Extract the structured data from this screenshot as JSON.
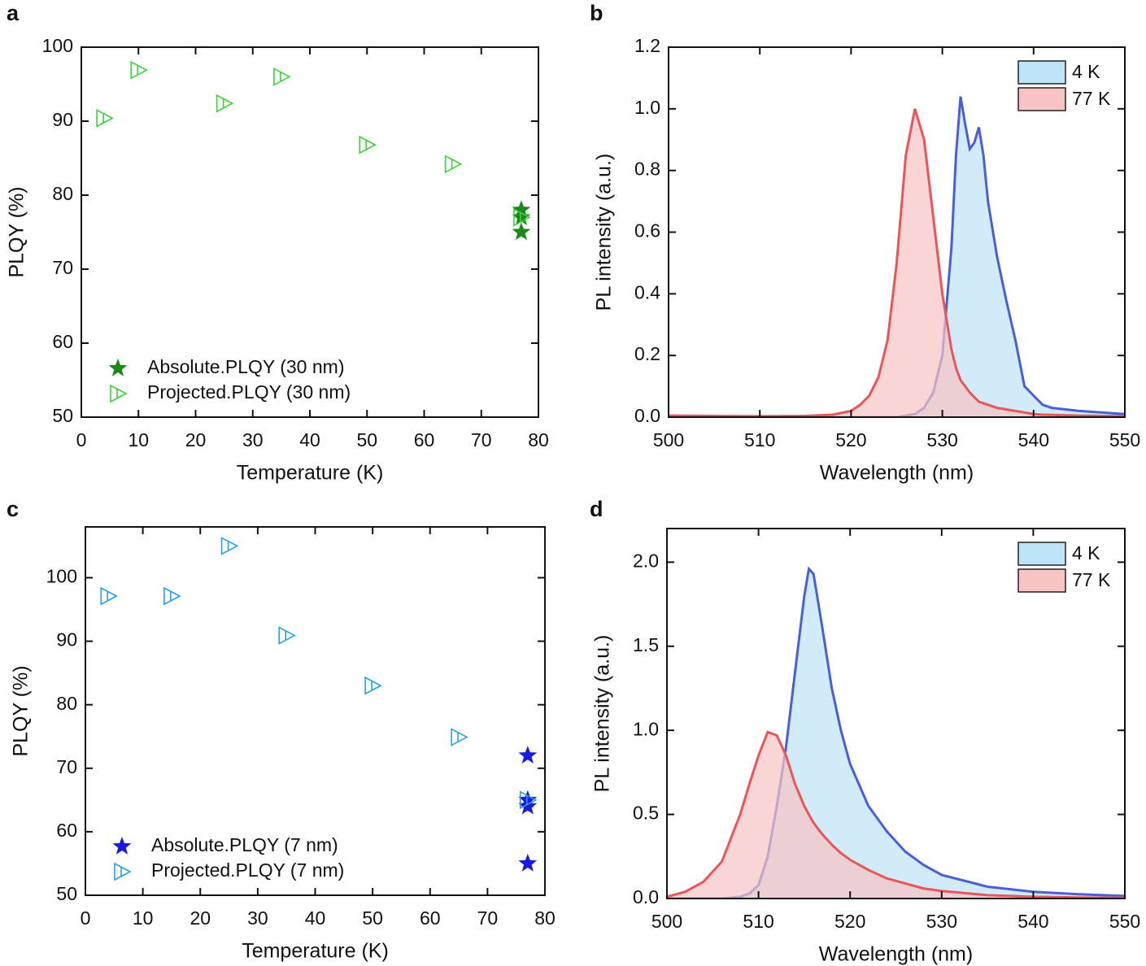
{
  "chart_data": [
    {
      "type": "scatter",
      "label": "a",
      "x_label": "Temperature (K)",
      "y_label": "PLQY (%)",
      "xlim": [
        0,
        80
      ],
      "xticks": [
        0,
        10,
        20,
        30,
        40,
        50,
        60,
        70,
        80
      ],
      "ylim": [
        50,
        100
      ],
      "yticks": [
        50,
        60,
        70,
        80,
        90,
        100
      ],
      "legend": "lower left",
      "series": [
        {
          "name": "Absolute.PLQY (30 nm)",
          "marker": "star",
          "color": "#1a8a1a",
          "x": [
            77,
            77,
            77
          ],
          "values": [
            78,
            77,
            75
          ]
        },
        {
          "name": "Projected.PLQY (30 nm)",
          "marker": "triangle-bar",
          "color": "#3ecf3e",
          "x": [
            4,
            10,
            25,
            35,
            50,
            65,
            77
          ],
          "values": [
            90.4,
            96.9,
            92.4,
            96,
            86.8,
            84.2,
            77
          ]
        }
      ]
    },
    {
      "type": "area",
      "label": "b",
      "x_label": "Wavelength (nm)",
      "y_label": "PL intensity (a.u.)",
      "xlim": [
        500,
        550
      ],
      "xticks": [
        500,
        510,
        520,
        530,
        540,
        550
      ],
      "ylim": [
        0,
        1.2
      ],
      "yticks": [
        {
          "value": 0,
          "label": "0.0"
        },
        0.2,
        0.4,
        0.6,
        0.8,
        {
          "value": 1,
          "label": "1.0"
        },
        1.2
      ],
      "legend": "upper right",
      "x": [
        500,
        505,
        510,
        515,
        518,
        520,
        521,
        522,
        523,
        524,
        525,
        526,
        527,
        528,
        529,
        530,
        531,
        531.5,
        532,
        532.5,
        533,
        533.5,
        534,
        534.5,
        535,
        536,
        537,
        538,
        539,
        540,
        541,
        542,
        545,
        550
      ],
      "series": [
        {
          "name": "4 K",
          "color": "#4a5fd6",
          "fill": "#bfe3f7",
          "values": [
            0,
            0,
            0,
            0,
            0,
            0,
            0,
            0,
            0,
            0,
            0,
            0.005,
            0.01,
            0.03,
            0.08,
            0.2,
            0.55,
            0.85,
            1.04,
            0.95,
            0.87,
            0.89,
            0.94,
            0.85,
            0.7,
            0.52,
            0.38,
            0.25,
            0.1,
            0.07,
            0.04,
            0.03,
            0.02,
            0.01
          ]
        },
        {
          "name": "77 K",
          "color": "#e8565a",
          "fill": "#f7c3c3",
          "values": [
            0.005,
            0.004,
            0.003,
            0.004,
            0.008,
            0.02,
            0.04,
            0.07,
            0.13,
            0.25,
            0.5,
            0.85,
            1.0,
            0.9,
            0.65,
            0.4,
            0.22,
            0.16,
            0.12,
            0.1,
            0.08,
            0.065,
            0.05,
            0.045,
            0.04,
            0.03,
            0.025,
            0.02,
            0.015,
            0.01,
            0.008,
            0.007,
            0.005,
            0.003
          ]
        }
      ]
    },
    {
      "type": "scatter",
      "label": "c",
      "x_label": "Temperature (K)",
      "y_label": "PLQY (%)",
      "xlim": [
        0,
        80
      ],
      "xticks": [
        0,
        10,
        20,
        30,
        40,
        50,
        60,
        70,
        80
      ],
      "ylim": [
        50,
        108
      ],
      "yticks": [
        50,
        60,
        70,
        80,
        90,
        100
      ],
      "legend": "lower left",
      "series": [
        {
          "name": "Absolute.PLQY (7 nm)",
          "marker": "star",
          "color": "#1a1adf",
          "x": [
            77,
            77,
            77,
            77
          ],
          "values": [
            72,
            65,
            64,
            55
          ]
        },
        {
          "name": "Projected.PLQY (7 nm)",
          "marker": "triangle-bar",
          "color": "#2a9fe0",
          "x": [
            4,
            15,
            25,
            35,
            50,
            65,
            77
          ],
          "values": [
            97.1,
            97.1,
            105,
            90.9,
            83,
            74.9,
            65
          ]
        }
      ]
    },
    {
      "type": "area",
      "label": "d",
      "x_label": "Wavelength (nm)",
      "y_label": "PL intensity (a.u.)",
      "xlim": [
        500,
        550
      ],
      "xticks": [
        500,
        510,
        520,
        530,
        540,
        550
      ],
      "ylim": [
        0,
        2.2
      ],
      "yticks": [
        {
          "value": 0,
          "label": "0.0"
        },
        0.5,
        {
          "value": 1,
          "label": "1.0"
        },
        1.5,
        {
          "value": 2,
          "label": "2.0"
        }
      ],
      "legend": "upper right",
      "x": [
        500,
        502,
        504,
        506,
        508,
        509,
        510,
        511,
        512,
        513,
        514,
        515,
        515.5,
        516,
        517,
        518,
        519,
        520,
        522,
        524,
        526,
        528,
        530,
        535,
        540,
        545,
        550
      ],
      "series": [
        {
          "name": "4 K",
          "color": "#4a5fd6",
          "fill": "#bfe3f7",
          "values": [
            0,
            0,
            0,
            0,
            0.01,
            0.03,
            0.08,
            0.25,
            0.55,
            0.9,
            1.35,
            1.8,
            1.96,
            1.93,
            1.6,
            1.25,
            1.0,
            0.8,
            0.55,
            0.4,
            0.28,
            0.2,
            0.14,
            0.07,
            0.04,
            0.025,
            0.015
          ]
        },
        {
          "name": "77 K",
          "color": "#e8565a",
          "fill": "#f7c3c3",
          "values": [
            0.01,
            0.04,
            0.1,
            0.22,
            0.5,
            0.68,
            0.85,
            0.99,
            0.97,
            0.85,
            0.68,
            0.55,
            0.5,
            0.45,
            0.38,
            0.32,
            0.27,
            0.23,
            0.17,
            0.12,
            0.09,
            0.06,
            0.045,
            0.02,
            0.01,
            0.006,
            0.004
          ]
        }
      ]
    }
  ]
}
